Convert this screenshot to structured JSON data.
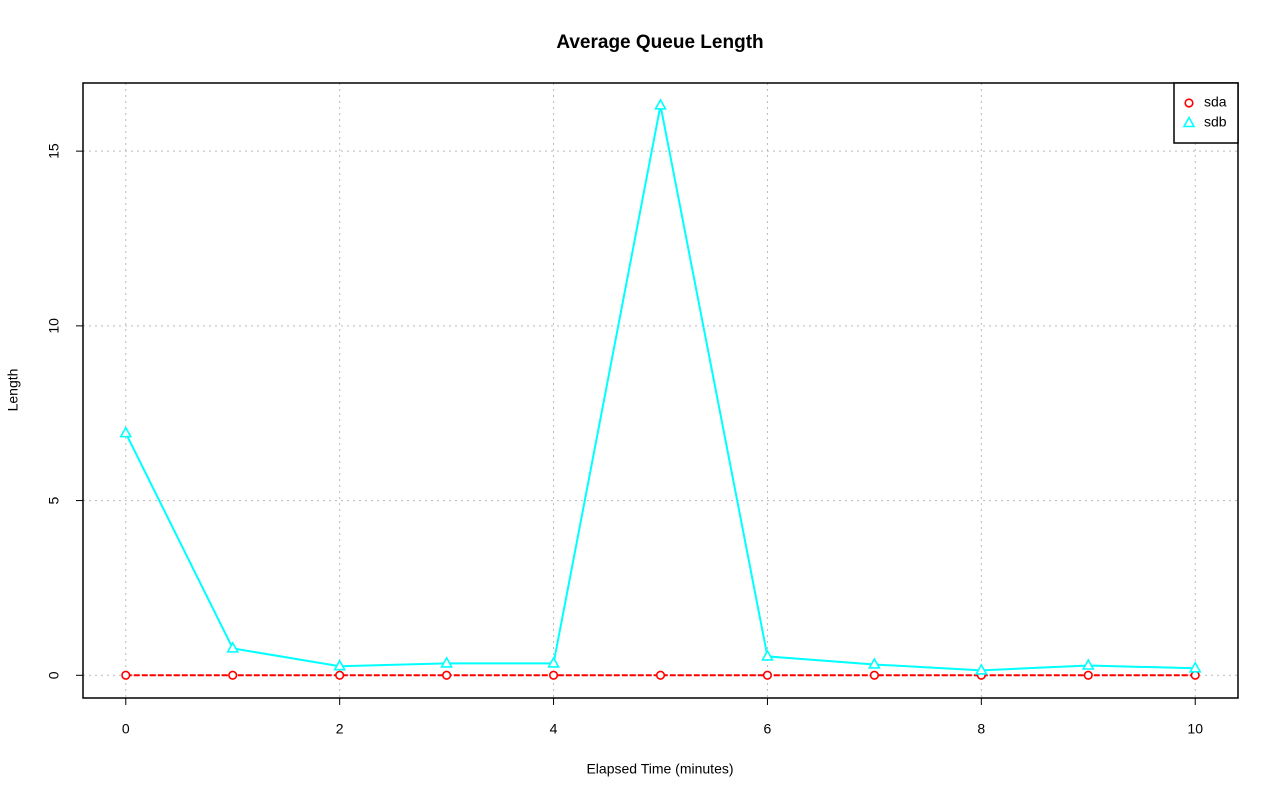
{
  "chart_data": {
    "type": "line",
    "title": "Average Queue Length",
    "x_label": "Elapsed Time (minutes)",
    "y_label": "Length",
    "x": [
      0,
      1,
      2,
      3,
      4,
      5,
      6,
      7,
      8,
      9,
      10
    ],
    "series": [
      {
        "name": "sda",
        "color": "#ff0000",
        "marker": "circle",
        "values": [
          0,
          0,
          0,
          0,
          0,
          0,
          0,
          0,
          0,
          0,
          0
        ]
      },
      {
        "name": "sdb",
        "color": "#00ffff",
        "marker": "triangle",
        "values": [
          6.93,
          0.77,
          0.26,
          0.34,
          0.34,
          16.31,
          0.54,
          0.31,
          0.14,
          0.28,
          0.2
        ]
      }
    ],
    "xlim": [
      -0.4,
      10.4
    ],
    "xticks": [
      0,
      2,
      4,
      6,
      8,
      10
    ],
    "ylim": [
      -0.65,
      16.95
    ],
    "yticks": [
      0,
      5,
      10,
      15
    ],
    "grid": true,
    "legend": "top-right"
  }
}
